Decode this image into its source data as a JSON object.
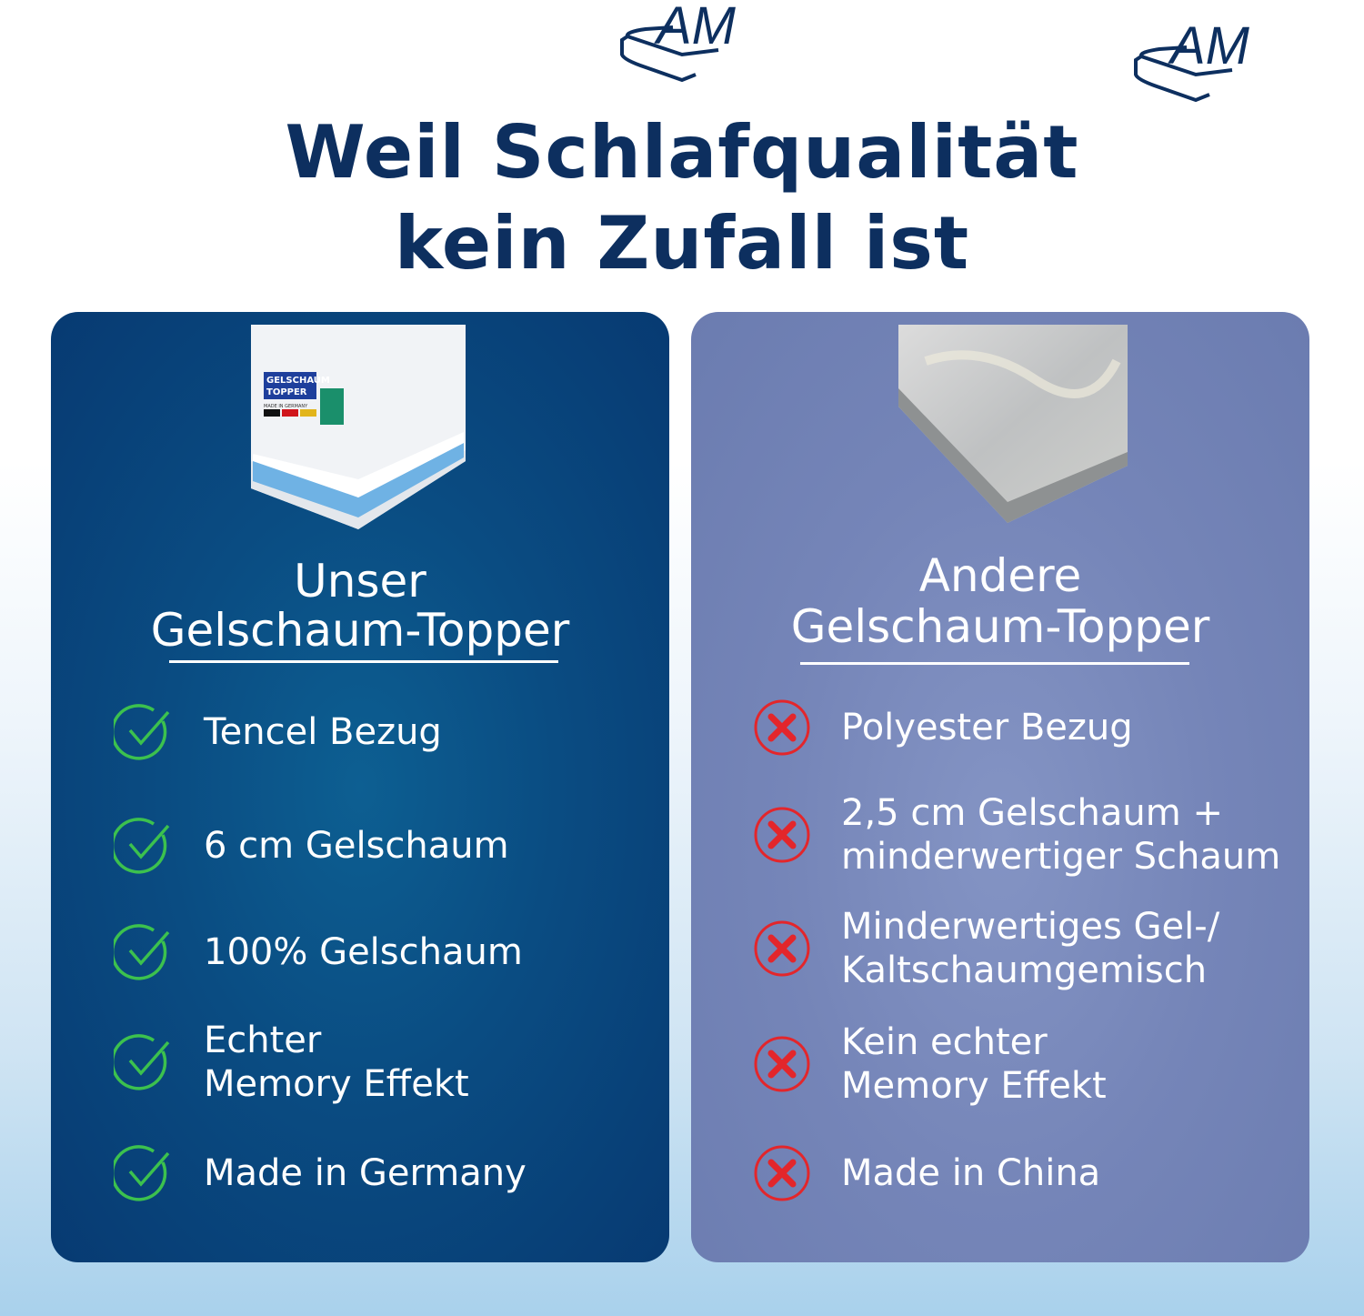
{
  "brand": {
    "logo_text": "AM",
    "color": "#0d2f5f"
  },
  "headline": {
    "line1": "Weil Schlafqualität",
    "line2": "kein Zufall ist"
  },
  "ours": {
    "heading_line1": "Unser",
    "heading_line2": "Gelschaum-Topper",
    "product_label": {
      "line1": "GELSCHAUM",
      "line2": "TOPPER",
      "line3": "MADE IN GERMANY"
    },
    "icon": "check-circle-icon",
    "icon_color": "#3cc14e",
    "panel_color": "#0a4c82",
    "items": [
      {
        "lines": [
          "Tencel Bezug"
        ]
      },
      {
        "lines": [
          "6 cm Gelschaum"
        ]
      },
      {
        "lines": [
          "100% Gelschaum"
        ]
      },
      {
        "lines": [
          "Echter",
          "Memory Effekt"
        ]
      },
      {
        "lines": [
          "Made in Germany"
        ]
      }
    ]
  },
  "others": {
    "heading_line1": "Andere",
    "heading_line2": "Gelschaum-Topper",
    "icon": "x-circle-icon",
    "icon_color": "#e3262b",
    "panel_color": "#7585b8",
    "items": [
      {
        "lines": [
          "Polyester Bezug"
        ]
      },
      {
        "lines": [
          "2,5 cm Gelschaum +",
          "minderwertiger Schaum"
        ]
      },
      {
        "lines": [
          "Minderwertiges Gel-/",
          "Kaltschaumgemisch"
        ]
      },
      {
        "lines": [
          "Kein echter",
          "Memory Effekt"
        ]
      },
      {
        "lines": [
          "Made in China"
        ]
      }
    ]
  }
}
